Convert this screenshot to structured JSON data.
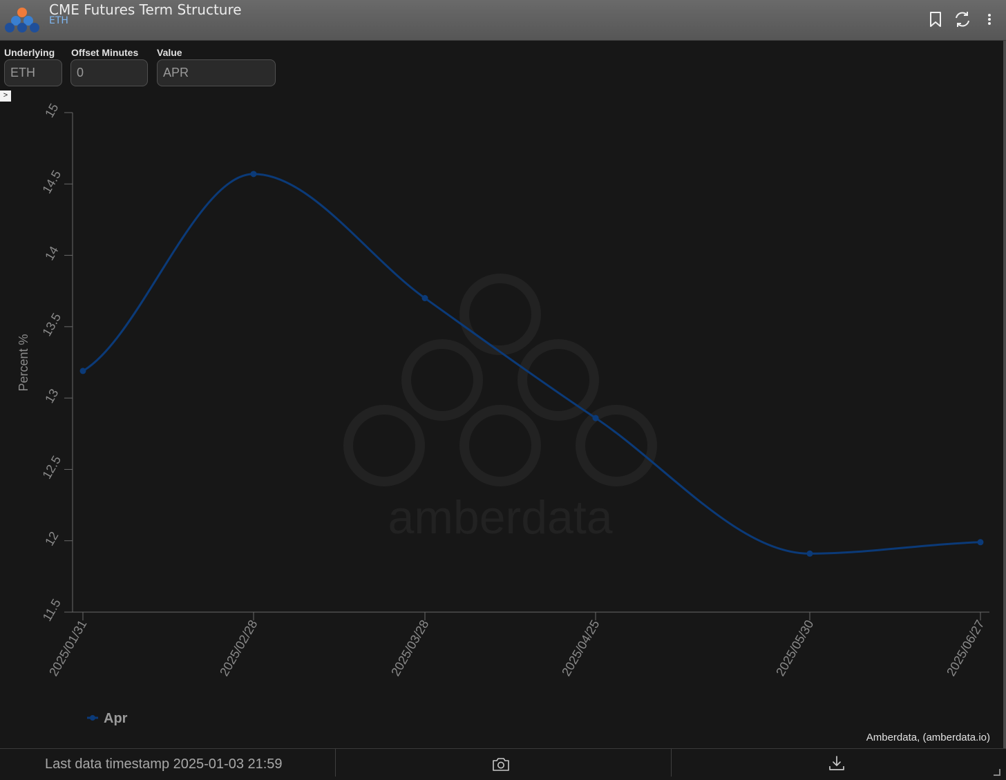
{
  "header": {
    "title": "CME Futures Term Structure",
    "subtitle": "ETH",
    "icons": [
      "bookmark-icon",
      "refresh-icon",
      "more-vertical-icon"
    ]
  },
  "form": {
    "underlying_label": "Underlying",
    "underlying_value": "ETH",
    "offset_label": "Offset Minutes",
    "offset_value": "0",
    "value_label": "Value",
    "value_value": "APR"
  },
  "chart_data": {
    "type": "line",
    "ylabel": "Percent %",
    "xlabel": "",
    "ylim": [
      11.5,
      15
    ],
    "yticks": [
      "11.5",
      "12",
      "12.5",
      "13",
      "13.5",
      "14",
      "14.5",
      "15"
    ],
    "categories": [
      "2025/01/31",
      "2025/02/28",
      "2025/03/28",
      "2025/04/25",
      "2025/05/30",
      "2025/06/27"
    ],
    "series": [
      {
        "name": "Apr",
        "color": "#0b3a78",
        "values": [
          13.19,
          14.57,
          13.7,
          12.86,
          11.91,
          11.99
        ]
      }
    ],
    "legend_position": "bottom-left",
    "grid": false,
    "watermark": "amberdata"
  },
  "credit": "Amberdata, (amberdata.io)",
  "footer": {
    "timestamp": "Last data timestamp 2025-01-03 21:59",
    "icons": [
      "camera-icon",
      "download-icon"
    ]
  }
}
